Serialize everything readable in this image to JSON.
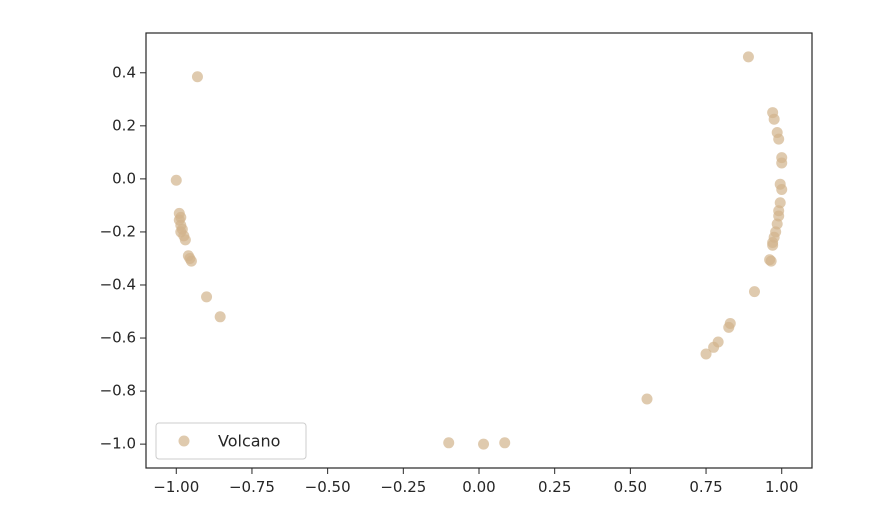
{
  "chart_data": {
    "type": "scatter",
    "title": "",
    "xlabel": "",
    "ylabel": "",
    "xlim": [
      -1.1,
      1.1
    ],
    "ylim": [
      -1.09,
      0.55
    ],
    "x_ticks": [
      "−1.00",
      "−0.75",
      "−0.50",
      "−0.25",
      "0.00",
      "0.25",
      "0.50",
      "0.75",
      "1.00"
    ],
    "x_tick_values": [
      -1.0,
      -0.75,
      -0.5,
      -0.25,
      0.0,
      0.25,
      0.5,
      0.75,
      1.0
    ],
    "y_ticks": [
      "0.4",
      "0.2",
      "0.0",
      "−0.2",
      "−0.4",
      "−0.6",
      "−0.8",
      "−1.0"
    ],
    "y_tick_values": [
      0.4,
      0.2,
      0.0,
      -0.2,
      -0.4,
      -0.6,
      -0.8,
      -1.0
    ],
    "grid": false,
    "legend_position": "lower-left",
    "marker_color": "#d2b48c",
    "series": [
      {
        "name": "Volcano",
        "color": "#d2b48c",
        "points": [
          {
            "x": 0.89,
            "y": 0.46
          },
          {
            "x": -0.93,
            "y": 0.385
          },
          {
            "x": 0.97,
            "y": 0.25
          },
          {
            "x": 0.975,
            "y": 0.225
          },
          {
            "x": 0.985,
            "y": 0.175
          },
          {
            "x": 0.99,
            "y": 0.15
          },
          {
            "x": 1.0,
            "y": 0.08
          },
          {
            "x": 1.0,
            "y": 0.06
          },
          {
            "x": 0.995,
            "y": -0.02
          },
          {
            "x": 1.0,
            "y": -0.04
          },
          {
            "x": 0.995,
            "y": -0.09
          },
          {
            "x": 0.99,
            "y": -0.12
          },
          {
            "x": 0.99,
            "y": -0.14
          },
          {
            "x": 0.985,
            "y": -0.17
          },
          {
            "x": 0.98,
            "y": -0.2
          },
          {
            "x": 0.975,
            "y": -0.22
          },
          {
            "x": 0.97,
            "y": -0.24
          },
          {
            "x": 0.97,
            "y": -0.25
          },
          {
            "x": 0.96,
            "y": -0.305
          },
          {
            "x": 0.965,
            "y": -0.31
          },
          {
            "x": 0.91,
            "y": -0.425
          },
          {
            "x": 0.83,
            "y": -0.545
          },
          {
            "x": 0.825,
            "y": -0.56
          },
          {
            "x": 0.79,
            "y": -0.615
          },
          {
            "x": 0.775,
            "y": -0.635
          },
          {
            "x": 0.75,
            "y": -0.66
          },
          {
            "x": 0.555,
            "y": -0.83
          },
          {
            "x": -1.0,
            "y": -0.005
          },
          {
            "x": -0.99,
            "y": -0.13
          },
          {
            "x": -0.985,
            "y": -0.145
          },
          {
            "x": -0.99,
            "y": -0.155
          },
          {
            "x": -0.985,
            "y": -0.175
          },
          {
            "x": -0.98,
            "y": -0.19
          },
          {
            "x": -0.985,
            "y": -0.2
          },
          {
            "x": -0.975,
            "y": -0.215
          },
          {
            "x": -0.97,
            "y": -0.23
          },
          {
            "x": -0.96,
            "y": -0.29
          },
          {
            "x": -0.955,
            "y": -0.3
          },
          {
            "x": -0.95,
            "y": -0.31
          },
          {
            "x": -0.9,
            "y": -0.445
          },
          {
            "x": -0.855,
            "y": -0.52
          },
          {
            "x": -0.1,
            "y": -0.995
          },
          {
            "x": 0.015,
            "y": -1.0
          },
          {
            "x": 0.085,
            "y": -0.995
          }
        ]
      }
    ]
  }
}
